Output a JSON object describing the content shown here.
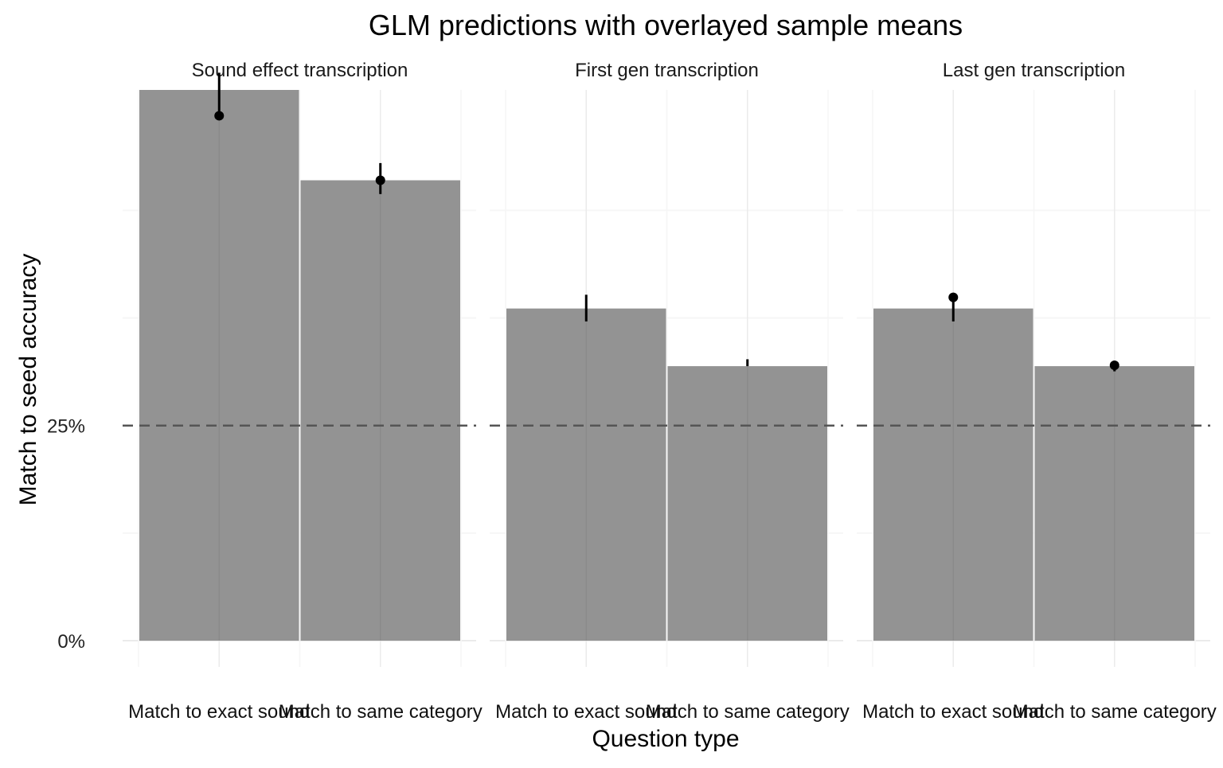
{
  "chart_data": {
    "type": "bar",
    "title": "GLM predictions with overlayed sample means",
    "xlabel": "Question type",
    "ylabel": "Match to seed accuracy",
    "ylim": [
      0,
      0.64
    ],
    "yticks": [
      {
        "value": 0,
        "label": "0%"
      },
      {
        "value": 0.25,
        "label": "25%"
      }
    ],
    "minor_grid_values": [
      0.125,
      0.375,
      0.5
    ],
    "reference_line": {
      "value": 0.25,
      "style": "dashed"
    },
    "grid": true,
    "colors": {
      "bar": "#909090",
      "point": "#000000",
      "grid_major": "#ebebeb",
      "grid_minor": "#f6f6f6",
      "reference": "#555555"
    },
    "categories": [
      "Match to exact sound",
      "Match to same category"
    ],
    "facets": [
      {
        "name": "Sound effect transcription",
        "bars": [
          {
            "category": "Match to exact sound",
            "prediction": 0.64,
            "error_low": 0.61,
            "error_high": 0.66,
            "sample_mean": 0.61
          },
          {
            "category": "Match to same category",
            "prediction": 0.535,
            "error_low": 0.519,
            "error_high": 0.555,
            "sample_mean": 0.535
          }
        ]
      },
      {
        "name": "First gen transcription",
        "bars": [
          {
            "category": "Match to exact sound",
            "prediction": 0.386,
            "error_low": 0.371,
            "error_high": 0.402,
            "sample_mean": null
          },
          {
            "category": "Match to same category",
            "prediction": 0.319,
            "error_low": 0.319,
            "error_high": 0.327,
            "sample_mean": null
          }
        ]
      },
      {
        "name": "Last gen transcription",
        "bars": [
          {
            "category": "Match to exact sound",
            "prediction": 0.386,
            "error_low": 0.371,
            "error_high": 0.397,
            "sample_mean": 0.399
          },
          {
            "category": "Match to same category",
            "prediction": 0.319,
            "error_low": 0.313,
            "error_high": 0.322,
            "sample_mean": 0.32
          }
        ]
      }
    ]
  }
}
